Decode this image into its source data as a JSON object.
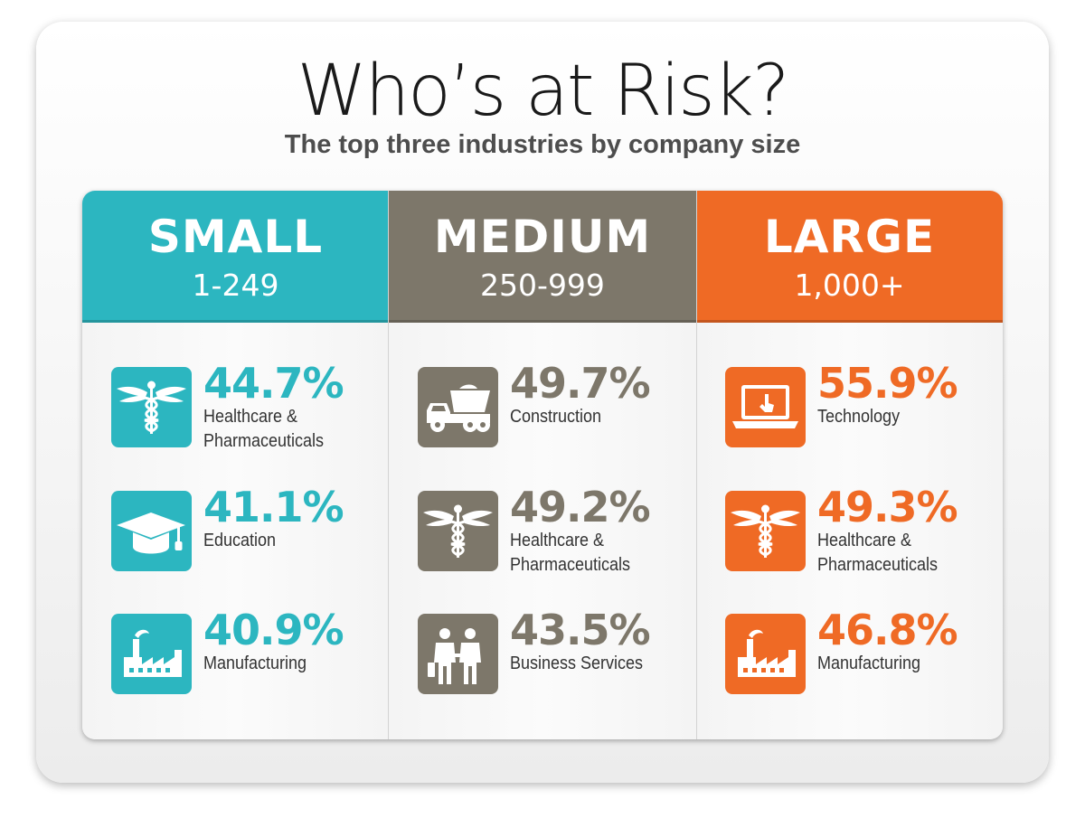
{
  "title": "Who’s at Risk?",
  "subtitle": "The top three industries by company size",
  "columns": [
    {
      "name": "SMALL",
      "range": "1-249",
      "color": "#2cb6c0",
      "items": [
        {
          "percent": "44.7%",
          "industry_line1": "Healthcare &",
          "industry_line2": "Pharmaceuticals",
          "icon": "caduceus-icon"
        },
        {
          "percent": "41.1%",
          "industry_line1": "Education",
          "industry_line2": "",
          "icon": "graduation-cap-icon"
        },
        {
          "percent": "40.9%",
          "industry_line1": "Manufacturing",
          "industry_line2": "",
          "icon": "factory-icon"
        }
      ]
    },
    {
      "name": "MEDIUM",
      "range": "250-999",
      "color": "#7d776a",
      "items": [
        {
          "percent": "49.7%",
          "industry_line1": "Construction",
          "industry_line2": "",
          "icon": "dump-truck-icon"
        },
        {
          "percent": "49.2%",
          "industry_line1": "Healthcare &",
          "industry_line2": "Pharmaceuticals",
          "icon": "caduceus-icon"
        },
        {
          "percent": "43.5%",
          "industry_line1": "Business Services",
          "industry_line2": "",
          "icon": "business-people-icon"
        }
      ]
    },
    {
      "name": "LARGE",
      "range": "1,000+",
      "color": "#ef6a25",
      "items": [
        {
          "percent": "55.9%",
          "industry_line1": "Technology",
          "industry_line2": "",
          "icon": "laptop-icon"
        },
        {
          "percent": "49.3%",
          "industry_line1": "Healthcare &",
          "industry_line2": "Pharmaceuticals",
          "icon": "caduceus-icon"
        },
        {
          "percent": "46.8%",
          "industry_line1": "Manufacturing",
          "industry_line2": "",
          "icon": "factory-icon"
        }
      ]
    }
  ]
}
